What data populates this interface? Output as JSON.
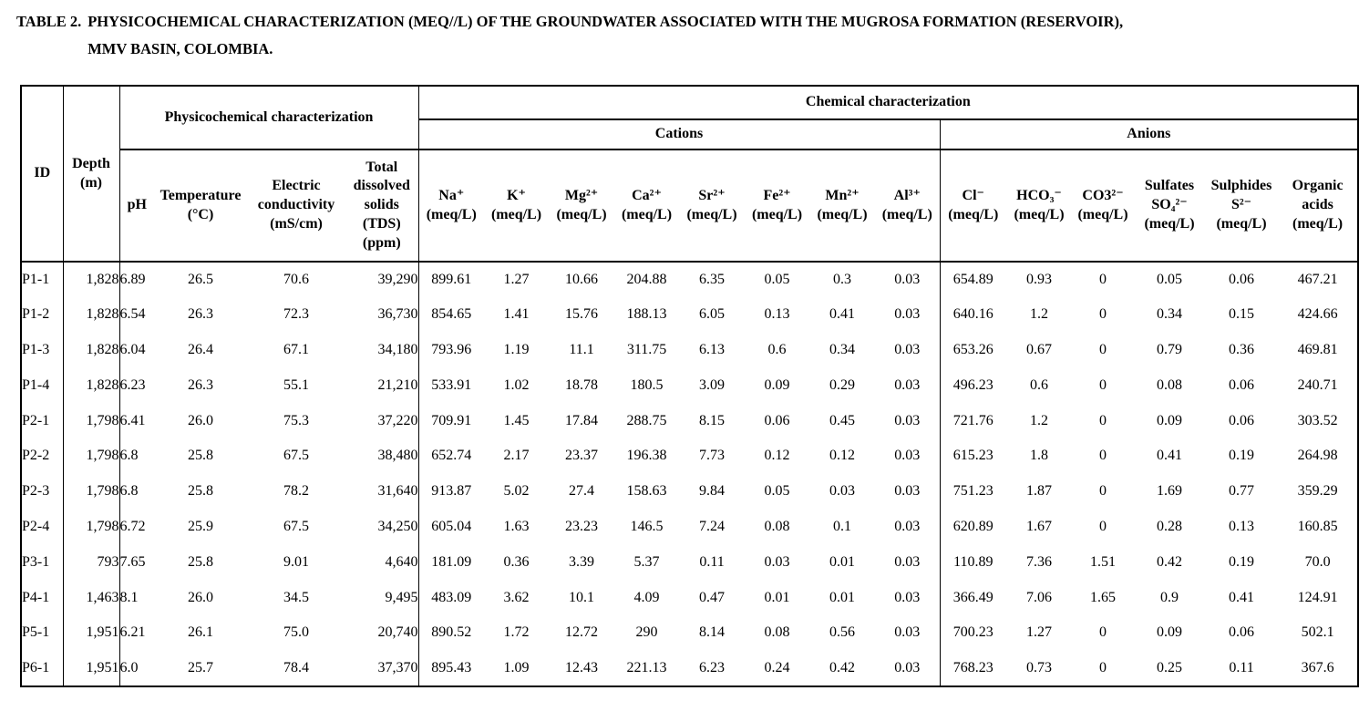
{
  "caption": {
    "label": "TABLE 2.",
    "text": "PHYSICOCHEMICAL CHARACTERIZATION (MEQ//L) OF THE GROUNDWATER ASSOCIATED WITH THE MUGROSA FORMATION (RESERVOIR),\nMMV BASIN, COLOMBIA."
  },
  "colors": {
    "text": "#000000",
    "background": "#ffffff",
    "border": "#000000"
  },
  "table": {
    "header": {
      "id": "ID",
      "depth": "Depth\n(m)",
      "physico_group": "Physicochemical characterization",
      "chemical_group": "Chemical characterization",
      "cations_group": "Cations",
      "anions_group": "Anions",
      "physico_cols": [
        "pH",
        "Temperature\n(°C)",
        "Electric\nconductivity\n(mS/cm)",
        "Total\ndissolved\nsolids\n(TDS)\n(ppm)"
      ],
      "cation_cols": [
        "Na⁺\n(meq/L)",
        "K⁺\n(meq/L)",
        "Mg²⁺\n(meq/L)",
        "Ca²⁺\n(meq/L)",
        "Sr²⁺\n(meq/L)",
        "Fe²⁺\n(meq/L)",
        "Mn²⁺\n(meq/L)",
        "Al³⁺\n(meq/L)"
      ],
      "anion_cols": [
        "Cl⁻\n(meq/L)",
        "HCO₃⁻\n(meq/L)",
        "CO3²⁻\n(meq/L)",
        "Sulfates\nSO₄²⁻\n(meq/L)",
        "Sulphides\nS²⁻\n(meq/L)",
        "Organic\nacids\n(meq/L)"
      ]
    },
    "rows": [
      {
        "id": "P1-1",
        "depth": "1,828",
        "ph": "6.89",
        "temp": "26.5",
        "ec": "70.6",
        "tds": "39,290",
        "cations": [
          "899.61",
          "1.27",
          "10.66",
          "204.88",
          "6.35",
          "0.05",
          "0.3",
          "0.03"
        ],
        "anions": [
          "654.89",
          "0.93",
          "0",
          "0.05",
          "0.06",
          "467.21"
        ]
      },
      {
        "id": "P1-2",
        "depth": "1,828",
        "ph": "6.54",
        "temp": "26.3",
        "ec": "72.3",
        "tds": "36,730",
        "cations": [
          "854.65",
          "1.41",
          "15.76",
          "188.13",
          "6.05",
          "0.13",
          "0.41",
          "0.03"
        ],
        "anions": [
          "640.16",
          "1.2",
          "0",
          "0.34",
          "0.15",
          "424.66"
        ]
      },
      {
        "id": "P1-3",
        "depth": "1,828",
        "ph": "6.04",
        "temp": "26.4",
        "ec": "67.1",
        "tds": "34,180",
        "cations": [
          "793.96",
          "1.19",
          "11.1",
          "311.75",
          "6.13",
          "0.6",
          "0.34",
          "0.03"
        ],
        "anions": [
          "653.26",
          "0.67",
          "0",
          "0.79",
          "0.36",
          "469.81"
        ]
      },
      {
        "id": "P1-4",
        "depth": "1,828",
        "ph": "6.23",
        "temp": "26.3",
        "ec": "55.1",
        "tds": "21,210",
        "cations": [
          "533.91",
          "1.02",
          "18.78",
          "180.5",
          "3.09",
          "0.09",
          "0.29",
          "0.03"
        ],
        "anions": [
          "496.23",
          "0.6",
          "0",
          "0.08",
          "0.06",
          "240.71"
        ]
      },
      {
        "id": "P2-1",
        "depth": "1,798",
        "ph": "6.41",
        "temp": "26.0",
        "ec": "75.3",
        "tds": "37,220",
        "cations": [
          "709.91",
          "1.45",
          "17.84",
          "288.75",
          "8.15",
          "0.06",
          "0.45",
          "0.03"
        ],
        "anions": [
          "721.76",
          "1.2",
          "0",
          "0.09",
          "0.06",
          "303.52"
        ]
      },
      {
        "id": "P2-2",
        "depth": "1,798",
        "ph": "6.8",
        "temp": "25.8",
        "ec": "67.5",
        "tds": "38,480",
        "cations": [
          "652.74",
          "2.17",
          "23.37",
          "196.38",
          "7.73",
          "0.12",
          "0.12",
          "0.03"
        ],
        "anions": [
          "615.23",
          "1.8",
          "0",
          "0.41",
          "0.19",
          "264.98"
        ]
      },
      {
        "id": "P2-3",
        "depth": "1,798",
        "ph": "6.8",
        "temp": "25.8",
        "ec": "78.2",
        "tds": "31,640",
        "cations": [
          "913.87",
          "5.02",
          "27.4",
          "158.63",
          "9.84",
          "0.05",
          "0.03",
          "0.03"
        ],
        "anions": [
          "751.23",
          "1.87",
          "0",
          "1.69",
          "0.77",
          "359.29"
        ]
      },
      {
        "id": "P2-4",
        "depth": "1,798",
        "ph": "6.72",
        "temp": "25.9",
        "ec": "67.5",
        "tds": "34,250",
        "cations": [
          "605.04",
          "1.63",
          "23.23",
          "146.5",
          "7.24",
          "0.08",
          "0.1",
          "0.03"
        ],
        "anions": [
          "620.89",
          "1.67",
          "0",
          "0.28",
          "0.13",
          "160.85"
        ]
      },
      {
        "id": "P3-1",
        "depth": "793",
        "ph": "7.65",
        "temp": "25.8",
        "ec": "9.01",
        "tds": "4,640",
        "cations": [
          "181.09",
          "0.36",
          "3.39",
          "5.37",
          "0.11",
          "0.03",
          "0.01",
          "0.03"
        ],
        "anions": [
          "110.89",
          "7.36",
          "1.51",
          "0.42",
          "0.19",
          "70.0"
        ]
      },
      {
        "id": "P4-1",
        "depth": "1,463",
        "ph": "8.1",
        "temp": "26.0",
        "ec": "34.5",
        "tds": "9,495",
        "cations": [
          "483.09",
          "3.62",
          "10.1",
          "4.09",
          "0.47",
          "0.01",
          "0.01",
          "0.03"
        ],
        "anions": [
          "366.49",
          "7.06",
          "1.65",
          "0.9",
          "0.41",
          "124.91"
        ]
      },
      {
        "id": "P5-1",
        "depth": "1,951",
        "ph": "6.21",
        "temp": "26.1",
        "ec": "75.0",
        "tds": "20,740",
        "cations": [
          "890.52",
          "1.72",
          "12.72",
          "290",
          "8.14",
          "0.08",
          "0.56",
          "0.03"
        ],
        "anions": [
          "700.23",
          "1.27",
          "0",
          "0.09",
          "0.06",
          "502.1"
        ]
      },
      {
        "id": "P6-1",
        "depth": "1,951",
        "ph": "6.0",
        "temp": "25.7",
        "ec": "78.4",
        "tds": "37,370",
        "cations": [
          "895.43",
          "1.09",
          "12.43",
          "221.13",
          "6.23",
          "0.24",
          "0.42",
          "0.03"
        ],
        "anions": [
          "768.23",
          "0.73",
          "0",
          "0.25",
          "0.11",
          "367.6"
        ]
      }
    ]
  }
}
